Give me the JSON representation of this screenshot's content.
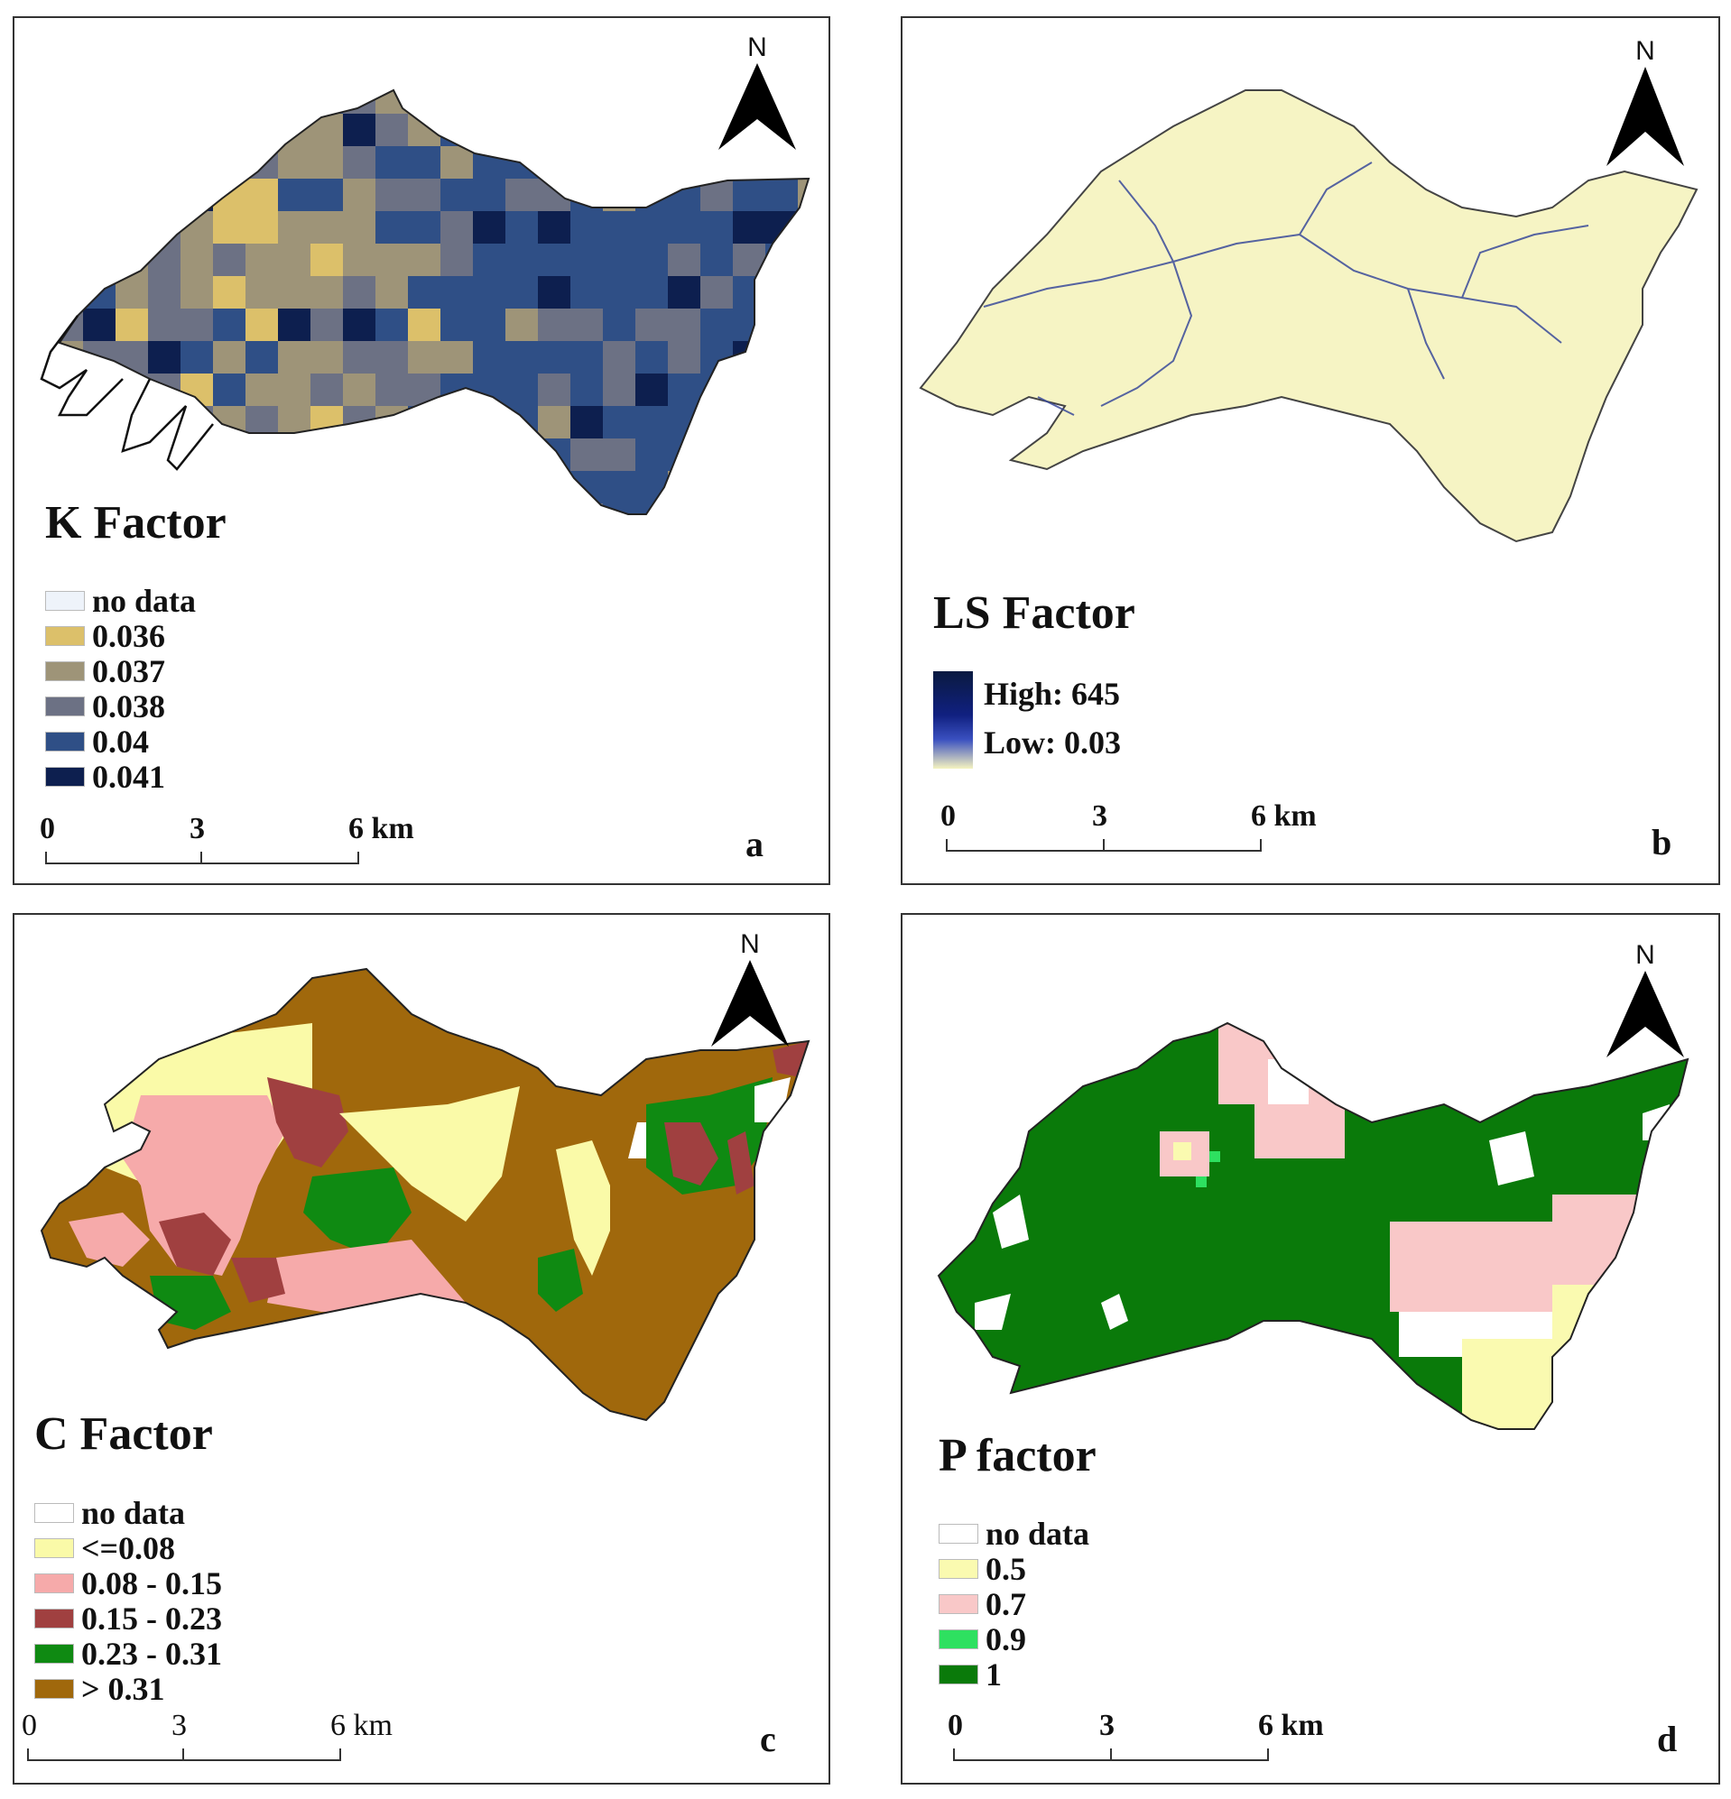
{
  "panels": {
    "a": {
      "title": "K Factor",
      "letter": "a",
      "legend": [
        {
          "label": "no data",
          "color": "#eef3fa"
        },
        {
          "label": "0.036",
          "color": "#dcc06a"
        },
        {
          "label": "0.037",
          "color": "#9e9478"
        },
        {
          "label": "0.038",
          "color": "#6c7184"
        },
        {
          "label": "0.04",
          "color": "#2f4f86"
        },
        {
          "label": "0.041",
          "color": "#0d1f4f"
        }
      ]
    },
    "b": {
      "title": "LS Factor",
      "letter": "b",
      "legend_high": "High: 645",
      "legend_low": "Low: 0.03",
      "base_color": "#f6f4c4",
      "stream_color": "#3a4a9a"
    },
    "c": {
      "title": "C Factor",
      "letter": "c",
      "legend": [
        {
          "label": "no data",
          "color": "#ffffff"
        },
        {
          "label": "<=0.08",
          "color": "#fafaa8"
        },
        {
          "label": "0.08 - 0.15",
          "color": "#f6aaaa"
        },
        {
          "label": "0.15 - 0.23",
          "color": "#a04040"
        },
        {
          "label": "0.23 - 0.31",
          "color": "#0f8a12"
        },
        {
          "label": "> 0.31",
          "color": "#a0680c"
        }
      ]
    },
    "d": {
      "title": "P factor",
      "letter": "d",
      "legend": [
        {
          "label": "no data",
          "color": "#ffffff"
        },
        {
          "label": "0.5",
          "color": "#fafab0"
        },
        {
          "label": "0.7",
          "color": "#f9c8c8"
        },
        {
          "label": "0.9",
          "color": "#2ee060"
        },
        {
          "label": "1",
          "color": "#0a7a0a"
        }
      ]
    }
  },
  "scale_bar": {
    "zero": "0",
    "mid": "3",
    "end": "6 km"
  },
  "north_label": "N"
}
